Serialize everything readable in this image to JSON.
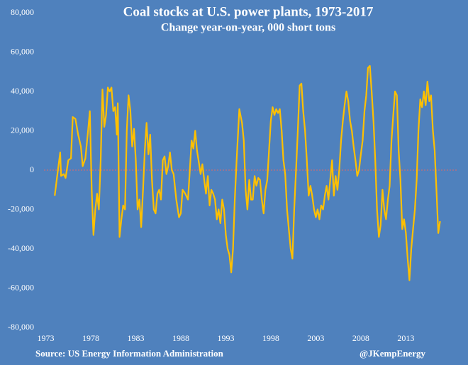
{
  "chart_data": {
    "type": "line",
    "title": "Coal stocks at U.S. power plants, 1973-2017",
    "subtitle": "Change year-on-year, 000 short tons",
    "source": "Source: US Energy Information Administration",
    "credit": "@JKempEnergy",
    "xlim": [
      1972.8,
      2018.8
    ],
    "xticks": [
      1973,
      1978,
      1983,
      1988,
      1993,
      1998,
      2003,
      2008,
      2013
    ],
    "ylim": [
      -80000,
      80000
    ],
    "yticks": [
      {
        "value": -80000,
        "label": "-80,000"
      },
      {
        "value": -60000,
        "label": "-60,000"
      },
      {
        "value": -40000,
        "label": "-40,000"
      },
      {
        "value": -20000,
        "label": "-20,000"
      },
      0,
      {
        "value": 20000,
        "label": "20,000"
      },
      {
        "value": 40000,
        "label": "40,000"
      },
      {
        "value": 60000,
        "label": "60,000"
      },
      {
        "value": 80000,
        "label": "80,000"
      }
    ],
    "zero_line_color": "#e06666",
    "series": [
      {
        "color": "#ffc000",
        "x": [
          1974.0,
          1974.3,
          1974.6,
          1974.7,
          1975.0,
          1975.2,
          1975.5,
          1975.8,
          1976.0,
          1976.3,
          1976.6,
          1976.9,
          1977.1,
          1977.4,
          1977.7,
          1977.9,
          1978.1,
          1978.3,
          1978.5,
          1978.7,
          1978.9,
          1979.1,
          1979.3,
          1979.5,
          1979.7,
          1979.9,
          1980.1,
          1980.3,
          1980.5,
          1980.7,
          1980.9,
          1981.0,
          1981.2,
          1981.4,
          1981.6,
          1981.8,
          1982.0,
          1982.2,
          1982.4,
          1982.6,
          1982.8,
          1983.0,
          1983.2,
          1983.4,
          1983.6,
          1983.8,
          1984.0,
          1984.2,
          1984.4,
          1984.6,
          1984.8,
          1985.0,
          1985.2,
          1985.4,
          1985.6,
          1985.8,
          1986.0,
          1986.2,
          1986.4,
          1986.6,
          1986.8,
          1987.0,
          1987.2,
          1987.5,
          1987.8,
          1988.0,
          1988.2,
          1988.5,
          1988.8,
          1989.0,
          1989.2,
          1989.4,
          1989.6,
          1989.8,
          1990.0,
          1990.2,
          1990.4,
          1990.6,
          1990.8,
          1991.0,
          1991.2,
          1991.4,
          1991.6,
          1991.8,
          1992.0,
          1992.2,
          1992.4,
          1992.6,
          1992.8,
          1993.0,
          1993.2,
          1993.4,
          1993.6,
          1993.8,
          1994.0,
          1994.2,
          1994.5,
          1994.8,
          1995.0,
          1995.2,
          1995.4,
          1995.6,
          1995.8,
          1996.0,
          1996.2,
          1996.4,
          1996.6,
          1996.8,
          1997.0,
          1997.2,
          1997.4,
          1997.6,
          1997.8,
          1998.0,
          1998.2,
          1998.4,
          1998.6,
          1998.8,
          1999.0,
          1999.2,
          1999.4,
          1999.6,
          1999.8,
          2000.0,
          2000.2,
          2000.4,
          2000.6,
          2000.8,
          2001.0,
          2001.2,
          2001.4,
          2001.6,
          2001.8,
          2002.0,
          2002.2,
          2002.4,
          2002.6,
          2002.8,
          2003.0,
          2003.2,
          2003.4,
          2003.6,
          2003.8,
          2004.0,
          2004.2,
          2004.4,
          2004.6,
          2004.8,
          2005.0,
          2005.2,
          2005.4,
          2005.6,
          2005.8,
          2006.0,
          2006.2,
          2006.4,
          2006.6,
          2006.8,
          2007.0,
          2007.2,
          2007.4,
          2007.6,
          2007.8,
          2008.0,
          2008.2,
          2008.4,
          2008.6,
          2008.8,
          2009.0,
          2009.2,
          2009.4,
          2009.6,
          2009.8,
          2010.0,
          2010.2,
          2010.4,
          2010.6,
          2010.8,
          2011.0,
          2011.2,
          2011.4,
          2011.6,
          2011.8,
          2012.0,
          2012.2,
          2012.4,
          2012.6,
          2012.8,
          2013.0,
          2013.2,
          2013.4,
          2013.6,
          2013.8,
          2014.0,
          2014.2,
          2014.4,
          2014.6,
          2014.8,
          2015.0,
          2015.2,
          2015.4,
          2015.6,
          2015.8,
          2016.0,
          2016.2,
          2016.4,
          2016.6,
          2016.8
        ],
        "values": [
          -13000,
          -2000,
          9000,
          -3000,
          -2000,
          -4000,
          5000,
          6000,
          27000,
          26000,
          18000,
          12000,
          2000,
          6000,
          20000,
          30000,
          -10000,
          -33000,
          -20000,
          -12000,
          -20000,
          5000,
          41000,
          22000,
          28000,
          42000,
          40000,
          42000,
          30000,
          32000,
          18000,
          34000,
          -34000,
          -25000,
          -18000,
          -20000,
          20000,
          38000,
          30000,
          12000,
          21000,
          5000,
          -20000,
          -15000,
          -29000,
          -10000,
          10000,
          24000,
          8000,
          18000,
          -5000,
          -20000,
          -22000,
          -12000,
          -10000,
          -15000,
          5000,
          7000,
          -2000,
          2000,
          9000,
          0,
          -2000,
          -15000,
          -24000,
          -22000,
          -10000,
          -12000,
          -15000,
          0,
          15000,
          11000,
          20000,
          10000,
          4000,
          -2000,
          3000,
          -5000,
          -12000,
          -3000,
          -18000,
          -10000,
          -12000,
          -15000,
          -25000,
          -20000,
          -27000,
          -15000,
          -20000,
          -33000,
          -40000,
          -43000,
          -52000,
          -40000,
          -15000,
          5000,
          31000,
          24000,
          15000,
          -10000,
          -20000,
          -5000,
          -15000,
          -15000,
          -3000,
          -8000,
          -4000,
          -5000,
          -15000,
          -22000,
          -10000,
          -5000,
          10000,
          25000,
          32000,
          28000,
          31000,
          29000,
          31000,
          20000,
          5000,
          -2000,
          -20000,
          -30000,
          -40000,
          -45000,
          -20000,
          0,
          20000,
          43000,
          44000,
          30000,
          20000,
          5000,
          -13000,
          -8000,
          -13000,
          -20000,
          -24000,
          -20000,
          -25000,
          -18000,
          -20000,
          -13000,
          -8000,
          -15000,
          -5000,
          5000,
          -13000,
          -3000,
          -10000,
          0,
          15000,
          25000,
          33000,
          40000,
          35000,
          25000,
          20000,
          12000,
          5000,
          -3000,
          0,
          8000,
          15000,
          30000,
          38000,
          52000,
          53000,
          40000,
          25000,
          5000,
          -20000,
          -34000,
          -28000,
          -10000,
          -20000,
          -25000,
          -15000,
          -8000,
          15000,
          28000,
          40000,
          38000,
          10000,
          -5000,
          -30000,
          -25000,
          -32000,
          -45000,
          -56000,
          -40000,
          -30000,
          -20000,
          -5000,
          20000,
          36000,
          32000,
          40000,
          33000,
          45000,
          35000,
          38000,
          20000,
          10000,
          -10000,
          -32000,
          -26000
        ]
      }
    ]
  }
}
